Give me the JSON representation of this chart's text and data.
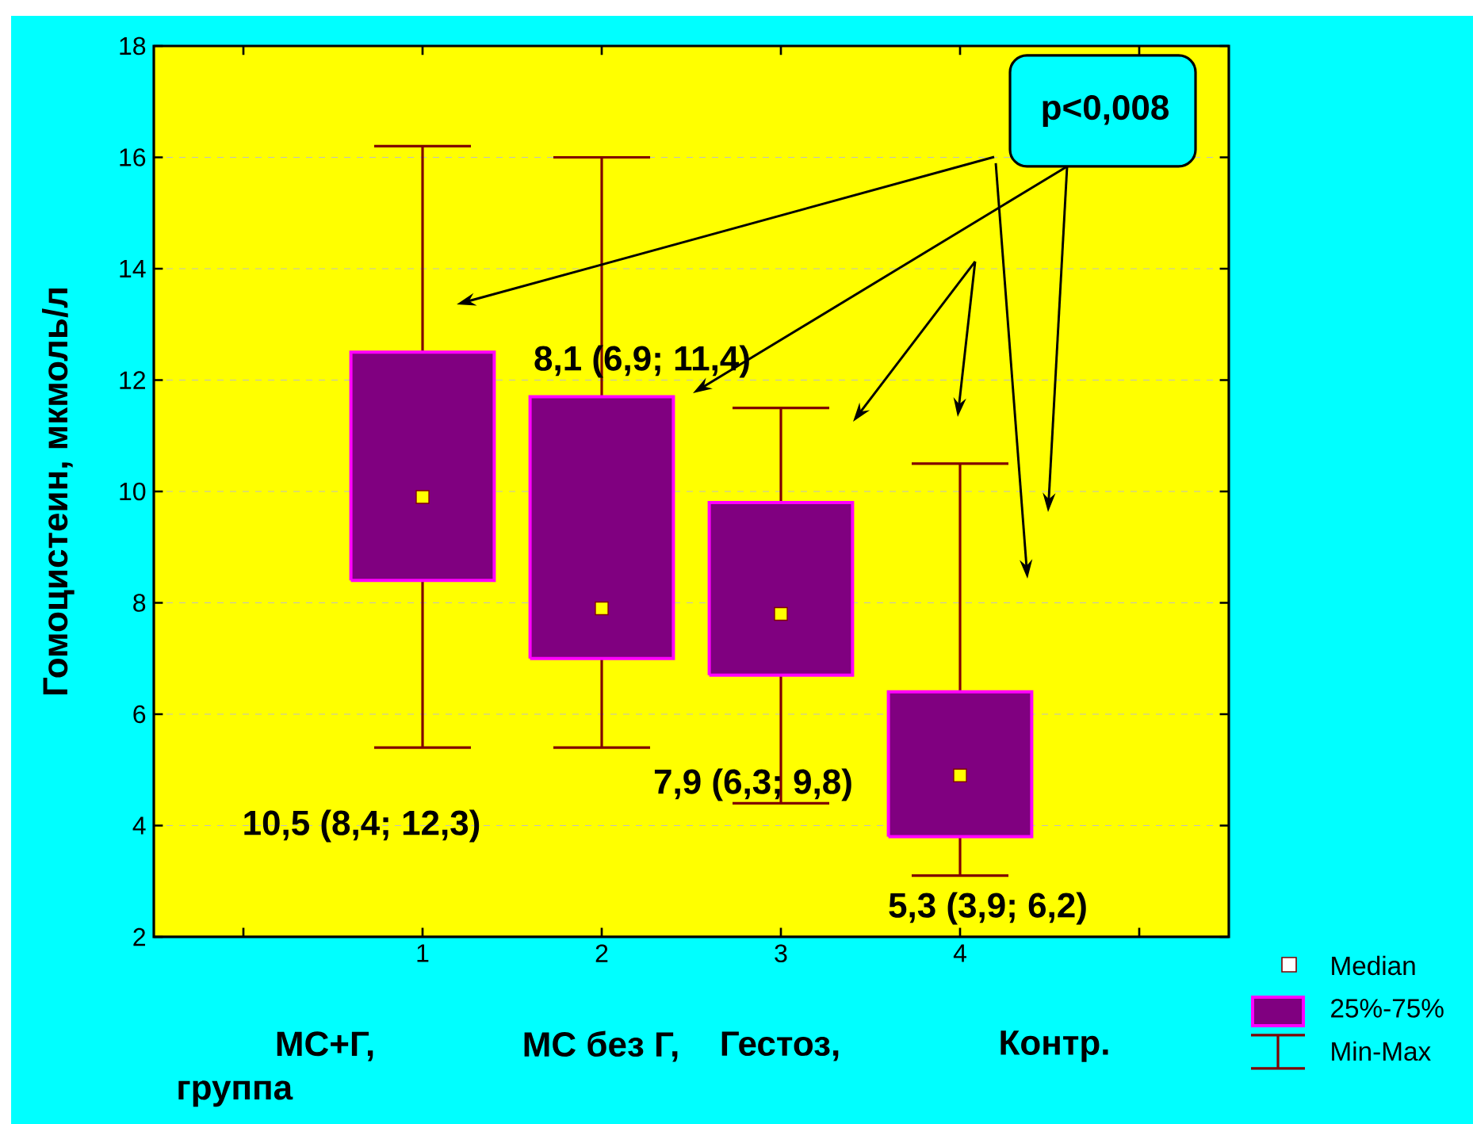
{
  "chart_data": {
    "type": "box",
    "ylabel": "Гомоцистеин, мкмоль/л",
    "xlabel": "группа",
    "categories": [
      "1",
      "2",
      "3",
      "4"
    ],
    "series": [
      {
        "color": "#800080",
        "boxes": [
          {
            "low": 5.4,
            "q1": 8.4,
            "median": 9.9,
            "q3": 12.5,
            "high": 16.2
          },
          {
            "low": 5.4,
            "q1": 7.0,
            "median": 7.9,
            "q3": 11.7,
            "high": 16.0
          },
          {
            "low": 4.4,
            "q1": 6.7,
            "median": 7.8,
            "q3": 9.8,
            "high": 11.5
          },
          {
            "low": 3.1,
            "q1": 3.8,
            "median": 4.9,
            "q3": 6.4,
            "high": 10.5
          }
        ]
      }
    ],
    "ylim": [
      2,
      18
    ],
    "yticks": [
      2,
      4,
      6,
      8,
      10,
      12,
      14,
      16,
      18
    ],
    "grid": "y",
    "annotations": [
      "p<0,008",
      "10,5 (8,4; 12,3)",
      "8,1 (6,9; 11,4)",
      "7,9 (6,3; 9,8)",
      "5,3 (3,9; 6,2)",
      "МС+Г,",
      "МС без Г,",
      "Гестоз,",
      "Контр.",
      "Median",
      "25%-75%",
      "Min-Max"
    ]
  }
}
